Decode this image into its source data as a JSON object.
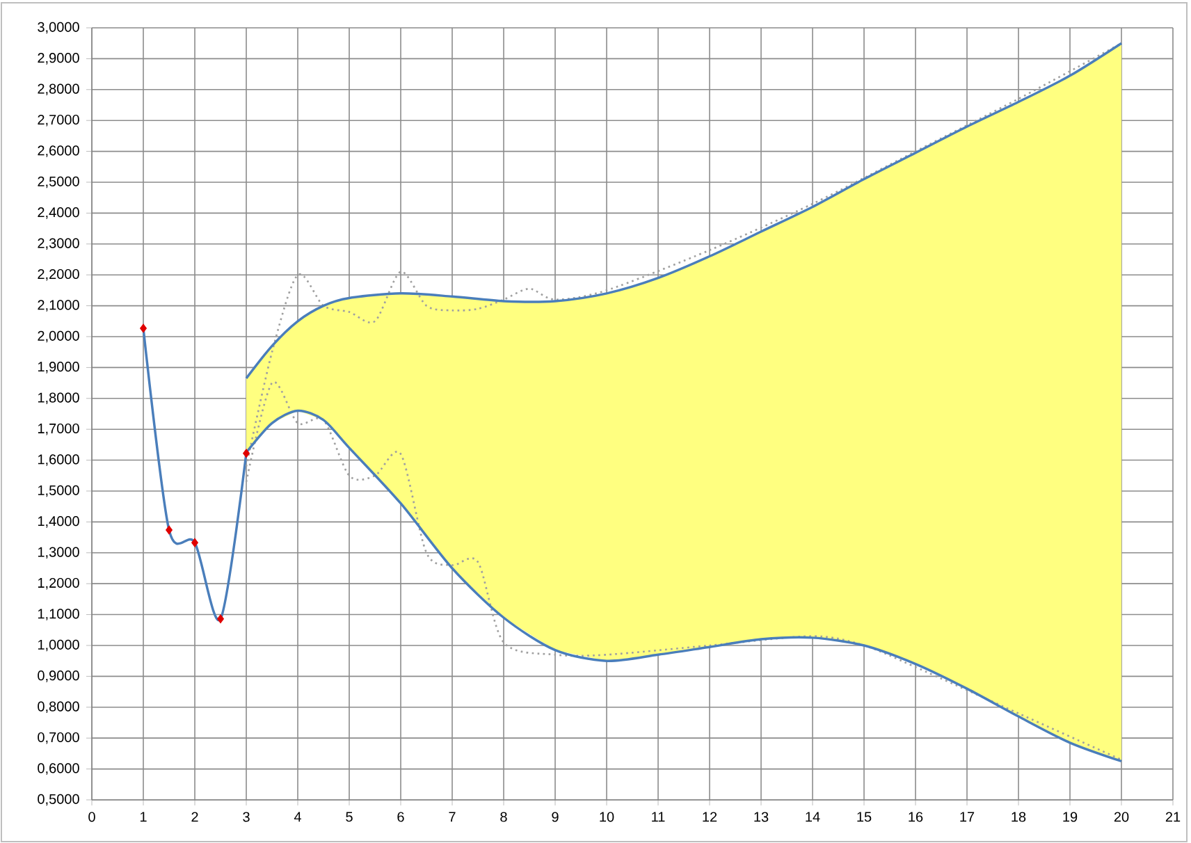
{
  "chart_data": {
    "type": "line",
    "xlim": [
      0,
      21
    ],
    "ylim": [
      0.5,
      3.0
    ],
    "xticks": [
      0,
      1,
      2,
      3,
      4,
      5,
      6,
      7,
      8,
      9,
      10,
      11,
      12,
      13,
      14,
      15,
      16,
      17,
      18,
      19,
      20,
      21
    ],
    "yticks": [
      {
        "value": 0.5,
        "label": "0,5000"
      },
      {
        "value": 0.6,
        "label": "0,6000"
      },
      {
        "value": 0.7,
        "label": "0,7000"
      },
      {
        "value": 0.8,
        "label": "0,8000"
      },
      {
        "value": 0.9,
        "label": "0,9000"
      },
      {
        "value": 1.0,
        "label": "1,0000"
      },
      {
        "value": 1.1,
        "label": "1,1000"
      },
      {
        "value": 1.2,
        "label": "1,2000"
      },
      {
        "value": 1.3,
        "label": "1,3000"
      },
      {
        "value": 1.4,
        "label": "1,4000"
      },
      {
        "value": 1.5,
        "label": "1,5000"
      },
      {
        "value": 1.6,
        "label": "1,6000"
      },
      {
        "value": 1.7,
        "label": "1,7000"
      },
      {
        "value": 1.8,
        "label": "1,8000"
      },
      {
        "value": 1.9,
        "label": "1,9000"
      },
      {
        "value": 2.0,
        "label": "2,0000"
      },
      {
        "value": 2.1,
        "label": "2,1000"
      },
      {
        "value": 2.2,
        "label": "2,2000"
      },
      {
        "value": 2.3,
        "label": "2,3000"
      },
      {
        "value": 2.4,
        "label": "2,4000"
      },
      {
        "value": 2.5,
        "label": "2,5000"
      },
      {
        "value": 2.6,
        "label": "2,6000"
      },
      {
        "value": 2.7,
        "label": "2,7000"
      },
      {
        "value": 2.8,
        "label": "2,8000"
      },
      {
        "value": 2.9,
        "label": "2,9000"
      },
      {
        "value": 3.0,
        "label": "3,0000"
      }
    ],
    "grid": true,
    "series": [
      {
        "type": "line",
        "color": "#4a7ebb",
        "marker": "none",
        "line_style": "solid",
        "x": [
          1,
          1.5,
          2,
          2.5,
          3
        ],
        "values": [
          2.027,
          1.374,
          1.333,
          1.086,
          1.622
        ]
      },
      {
        "type": "scatter",
        "color": "#e00000",
        "marker": "diamond",
        "x": [
          1,
          1.5,
          2,
          2.5,
          3
        ],
        "values": [
          2.027,
          1.374,
          1.333,
          1.086,
          1.622
        ]
      },
      {
        "type": "line",
        "color": "#a0a0a0",
        "marker": "none",
        "line_style": "dotted",
        "x": [
          3,
          3.5,
          4,
          4.5,
          5,
          5.5,
          6,
          6.5,
          7,
          7.5,
          8,
          8.5,
          9,
          10,
          12,
          14,
          16,
          18,
          20
        ],
        "values": [
          1.58,
          1.95,
          2.2,
          2.1,
          2.08,
          2.05,
          2.21,
          2.1,
          2.085,
          2.09,
          2.12,
          2.155,
          2.12,
          2.15,
          2.28,
          2.43,
          2.6,
          2.77,
          2.95
        ]
      },
      {
        "type": "line",
        "color": "#a0a0a0",
        "marker": "none",
        "line_style": "dotted",
        "x": [
          3,
          3.5,
          4,
          4.5,
          5,
          5.5,
          6,
          6.5,
          7,
          7.5,
          8,
          9,
          10,
          12,
          14,
          15,
          16,
          18,
          20
        ],
        "values": [
          1.53,
          1.85,
          1.72,
          1.73,
          1.55,
          1.55,
          1.62,
          1.3,
          1.26,
          1.27,
          1.01,
          0.97,
          0.97,
          1.0,
          1.03,
          1.0,
          0.93,
          0.78,
          0.63
        ]
      },
      {
        "type": "line",
        "color": "#4a7ebb",
        "marker": "none",
        "line_style": "solid",
        "x": [
          3,
          3.5,
          4,
          4.5,
          5,
          6,
          7,
          8,
          9,
          10,
          11,
          12,
          13,
          14,
          15,
          16,
          17,
          18,
          19,
          20
        ],
        "values": [
          1.865,
          1.97,
          2.05,
          2.1,
          2.125,
          2.14,
          2.13,
          2.115,
          2.115,
          2.14,
          2.19,
          2.26,
          2.34,
          2.42,
          2.51,
          2.595,
          2.68,
          2.76,
          2.845,
          2.95
        ],
        "lower": [
          1.625,
          1.72,
          1.76,
          1.73,
          1.64,
          1.46,
          1.25,
          1.09,
          0.985,
          0.95,
          0.97,
          0.995,
          1.02,
          1.025,
          1.0,
          0.94,
          0.86,
          0.77,
          0.685,
          0.625
        ],
        "upper": [
          1.865,
          1.97,
          2.05,
          2.1,
          2.125,
          2.14,
          2.13,
          2.115,
          2.115,
          2.14,
          2.19,
          2.26,
          2.34,
          2.42,
          2.51,
          2.595,
          2.68,
          2.76,
          2.845,
          2.95
        ]
      },
      {
        "type": "line",
        "color": "#4a7ebb",
        "marker": "none",
        "line_style": "solid",
        "x": [
          3,
          3.5,
          4,
          4.5,
          5,
          6,
          7,
          8,
          9,
          10,
          11,
          12,
          13,
          14,
          15,
          16,
          17,
          18,
          19,
          20
        ],
        "values": [
          1.625,
          1.72,
          1.76,
          1.73,
          1.64,
          1.46,
          1.25,
          1.09,
          0.985,
          0.95,
          0.97,
          0.995,
          1.02,
          1.025,
          1.0,
          0.94,
          0.86,
          0.77,
          0.685,
          0.625
        ]
      }
    ]
  }
}
